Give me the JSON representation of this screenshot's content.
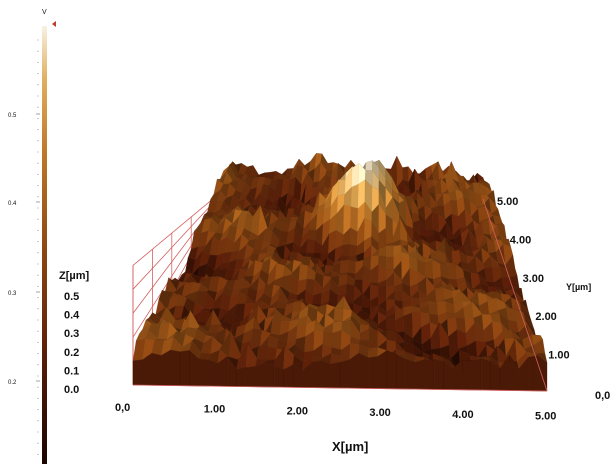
{
  "chart_data": {
    "type": "surface3d",
    "colorbar": {
      "unit": "V",
      "ticks": [
        "0.5",
        "0.4",
        "0.3",
        "0.2"
      ]
    },
    "axes": {
      "x": {
        "label": "X[µm]",
        "ticks": [
          "0,0",
          "1.00",
          "2.00",
          "3.00",
          "4.00",
          "5.00"
        ],
        "range": [
          0,
          5
        ]
      },
      "y": {
        "label": "Y[µm]",
        "ticks": [
          "0,0",
          "1.00",
          "2.00",
          "3.00",
          "4.00",
          "5.00"
        ],
        "range": [
          0,
          5
        ]
      },
      "z": {
        "label": "Z[µm]",
        "ticks": [
          "0.0",
          "0.1",
          "0.2",
          "0.3",
          "0.4",
          "0.5"
        ],
        "range": [
          0,
          0.5
        ]
      }
    },
    "grid": true,
    "colormap": [
      "#1a0500",
      "#5a1e08",
      "#8e4a12",
      "#c07a2a",
      "#e0b060",
      "#f6ecd2"
    ]
  }
}
